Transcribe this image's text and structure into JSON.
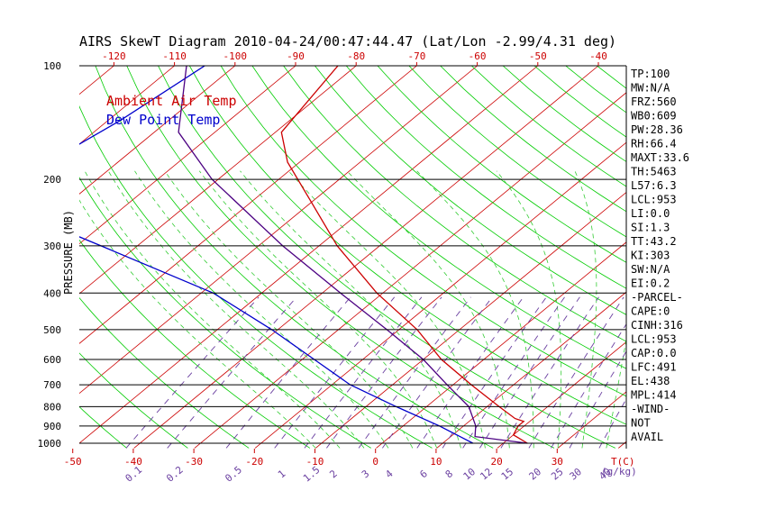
{
  "chart_data": {
    "type": "line",
    "title": "AIRS SkewT Diagram 2010-04-24/00:47:44.47 (Lat/Lon -2.99/4.31 deg)",
    "ylabel": "PRESSURE (MB)",
    "xlabel_bottom": "T(C)",
    "mixing_ratio_unit_label": "(g/kg)",
    "top_temp_ticks": [
      "-120",
      "-110",
      "-100",
      "-90",
      "-80",
      "-70",
      "-60",
      "-50",
      "-40"
    ],
    "bottom_temp_ticks": [
      "-50",
      "-40",
      "-30",
      "-20",
      "-10",
      "0",
      "10",
      "20",
      "30"
    ],
    "mixing_ratio_labels": [
      "0.1",
      "0.2",
      "0.5",
      "1",
      "1.5",
      "2",
      "3",
      "4",
      "6",
      "8",
      "10",
      "12",
      "15",
      "20",
      "25",
      "30",
      "40"
    ],
    "pressure_ticks": [
      "100",
      "200",
      "300",
      "400",
      "500",
      "600",
      "700",
      "800",
      "900",
      "1000"
    ],
    "pressure_levels": [
      100,
      200,
      300,
      400,
      500,
      600,
      700,
      800,
      900,
      1000
    ],
    "legend": {
      "position": "top-left",
      "items": [
        {
          "label": "Ambient Air Temp",
          "color": "#cc0000"
        },
        {
          "label": "Dew Point Temp",
          "color": "#0000cc"
        }
      ]
    },
    "series": [
      {
        "name": "Ambient Air Temp",
        "color": "#cc0000",
        "points": [
          {
            "p": 100,
            "t": -83
          },
          {
            "p": 150,
            "t": -79
          },
          {
            "p": 180,
            "t": -72
          },
          {
            "p": 230,
            "t": -60
          },
          {
            "p": 300,
            "t": -47
          },
          {
            "p": 400,
            "t": -31
          },
          {
            "p": 500,
            "t": -17
          },
          {
            "p": 600,
            "t": -7
          },
          {
            "p": 700,
            "t": 3
          },
          {
            "p": 800,
            "t": 12
          },
          {
            "p": 860,
            "t": 17
          },
          {
            "p": 875,
            "t": 19
          },
          {
            "p": 900,
            "t": 19
          },
          {
            "p": 950,
            "t": 20
          },
          {
            "p": 1000,
            "t": 24
          }
        ]
      },
      {
        "name": "Dew Point Temp",
        "color": "#0000cc",
        "points": [
          {
            "p": 100,
            "t": -105
          },
          {
            "p": 140,
            "t": -108
          },
          {
            "p": 200,
            "t": -113
          },
          {
            "p": 240,
            "t": -110
          },
          {
            "p": 260,
            "t": -100
          },
          {
            "p": 300,
            "t": -86
          },
          {
            "p": 400,
            "t": -58
          },
          {
            "p": 500,
            "t": -41
          },
          {
            "p": 600,
            "t": -28
          },
          {
            "p": 700,
            "t": -17
          },
          {
            "p": 800,
            "t": -5
          },
          {
            "p": 900,
            "t": 6
          },
          {
            "p": 1000,
            "t": 15
          }
        ]
      },
      {
        "name": "",
        "color": "#4b0082",
        "points": [
          {
            "p": 100,
            "t": -108
          },
          {
            "p": 150,
            "t": -96
          },
          {
            "p": 200,
            "t": -81
          },
          {
            "p": 300,
            "t": -56
          },
          {
            "p": 400,
            "t": -37
          },
          {
            "p": 500,
            "t": -22
          },
          {
            "p": 600,
            "t": -10
          },
          {
            "p": 700,
            "t": -1
          },
          {
            "p": 800,
            "t": 7
          },
          {
            "p": 900,
            "t": 12
          },
          {
            "p": 960,
            "t": 14
          },
          {
            "p": 1000,
            "t": 24
          }
        ]
      }
    ],
    "indices": [
      "TP:100",
      "MW:N/A",
      "FRZ:560",
      "WB0:609",
      "PW:28.36",
      "RH:66.4",
      "MAXT:33.6",
      "TH:5463",
      "L57:6.3",
      "LCL:953",
      "LI:0.0",
      "SI:1.3",
      "TT:43.2",
      "KI:303",
      "SW:N/A",
      "EI:0.2",
      "-PARCEL-",
      "CAPE:0",
      "CINH:316",
      "LCL:953",
      "CAP:0.0",
      "LFC:491",
      "EL:438",
      "MPL:414",
      "-WIND-",
      "NOT",
      "AVAIL"
    ],
    "colors": {
      "isotherm": "#cc0000",
      "dry_adiabat": "#00cc00",
      "moist_adiabat": "#33cc33",
      "mixing_ratio": "#6a3fa0",
      "isobar": "#000000",
      "dew_point": "#0000cc",
      "parcel": "#4b0082"
    }
  }
}
